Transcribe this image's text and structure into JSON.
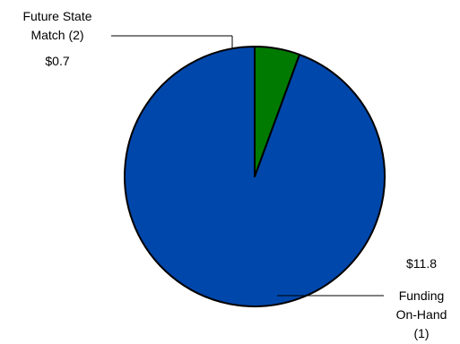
{
  "chart_data": {
    "type": "pie",
    "slices": [
      {
        "label_lines": [
          "Funding",
          "On-Hand",
          "(1)"
        ],
        "value_label": "$11.8",
        "value": 11.8,
        "color": "#0047AB"
      },
      {
        "label_lines": [
          "Future State",
          "Match (2)"
        ],
        "value_label": "$0.7",
        "value": 0.7,
        "color": "#007A00"
      }
    ],
    "start_angle_deg": 0,
    "direction": "counterclockwise",
    "legend": "none"
  }
}
